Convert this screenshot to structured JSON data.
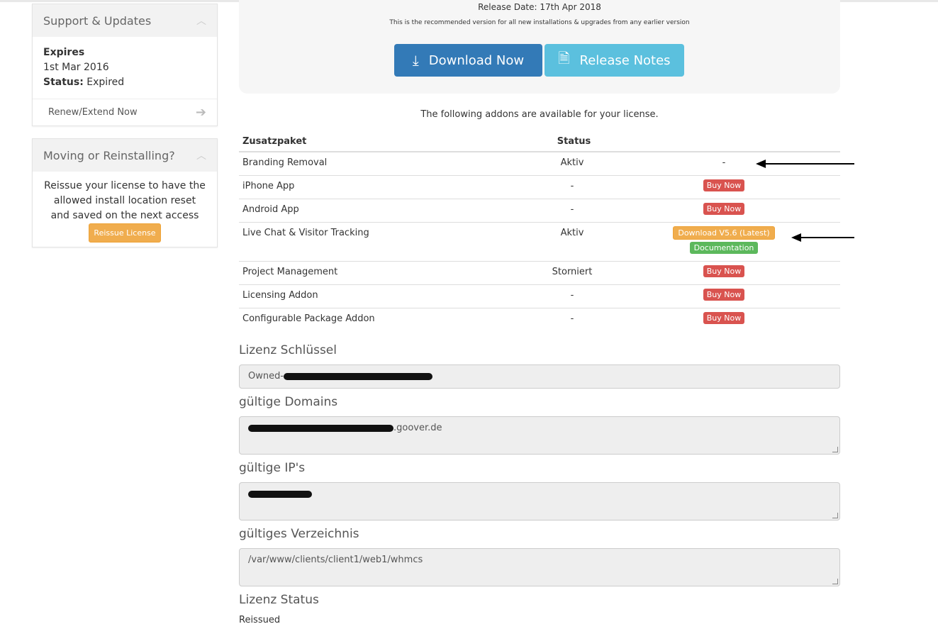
{
  "sidebar": {
    "support": {
      "title": "Support & Updates",
      "expires_label": "Expires",
      "expires_date": "1st Mar 2016",
      "status_label": "Status:",
      "status_value": "Expired",
      "renew": "Renew/Extend Now"
    },
    "moving": {
      "title": "Moving or Reinstalling?",
      "text": "Reissue your license to have the allowed install location reset and saved on the next access",
      "button": "Reissue License"
    }
  },
  "release": {
    "date": "Release Date: 17th Apr 2018",
    "note": "This is the recommended version for all new installations & upgrades from any earlier version",
    "download": "Download Now",
    "notes": "Release Notes"
  },
  "addons": {
    "intro": "The following addons are available for your license.",
    "headers": [
      "Zusatzpaket",
      "Status",
      ""
    ],
    "rows": [
      {
        "name": "Branding Removal",
        "status": "Aktiv",
        "action": "-"
      },
      {
        "name": "iPhone App",
        "status": "-",
        "action": "Buy Now"
      },
      {
        "name": "Android App",
        "status": "-",
        "action": "Buy Now"
      },
      {
        "name": "Live Chat & Visitor Tracking",
        "status": "Aktiv",
        "action": "Download V5.6 (Latest)",
        "action2": "Documentation"
      },
      {
        "name": "Project Management",
        "status": "Storniert",
        "action": "Buy Now"
      },
      {
        "name": "Licensing Addon",
        "status": "-",
        "action": "Buy Now"
      },
      {
        "name": "Configurable Package Addon",
        "status": "-",
        "action": "Buy Now"
      }
    ]
  },
  "license": {
    "key_label": "Lizenz Schlüssel",
    "key_value": "Owned-",
    "domains_label": "gültige Domains",
    "domains_value": ".goover.de",
    "ips_label": "gültige IP's",
    "dir_label": "gültiges Verzeichnis",
    "dir_value": "/var/www/clients/client1/web1/whmcs",
    "status_label": "Lizenz Status",
    "status_value": "Reissued"
  },
  "colors": {
    "primary": "#337ab7",
    "info": "#5bc0de",
    "danger": "#d9534f",
    "warning": "#f0ad4e",
    "success": "#5cb85c"
  }
}
